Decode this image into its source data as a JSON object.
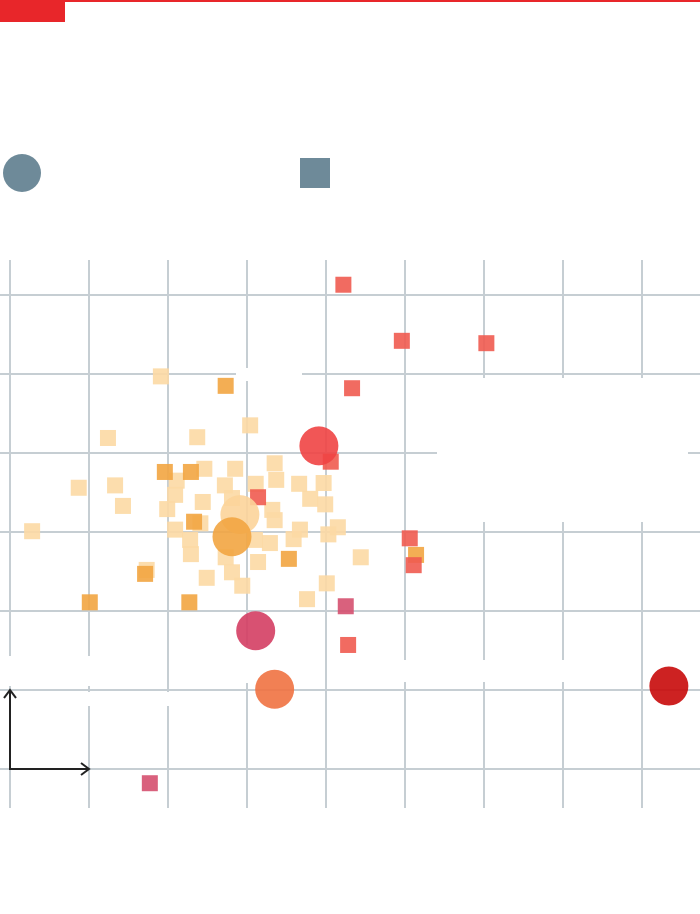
{
  "chart_data": {
    "type": "scatter",
    "xlim": [
      -0.1,
      8.7
    ],
    "ylim": [
      -0.5,
      6.5
    ],
    "xticks": [
      0,
      1,
      2,
      3,
      4,
      5,
      6,
      7,
      8
    ],
    "yticks": [
      0,
      1,
      2,
      3,
      4,
      5,
      6
    ],
    "grid": true,
    "series": [
      {
        "marker": "square",
        "color": "#fcd9a4",
        "x": [
          1.91,
          1.24,
          2.37,
          3.04,
          3.35,
          2.46,
          2.85,
          2.11,
          0.87,
          1.33,
          2.72,
          3.11,
          3.37,
          3.66,
          3.97,
          2.09,
          1.43,
          2.44,
          2.81,
          3.8,
          3.99,
          1.99,
          3.32,
          3.35,
          2.09,
          2.41,
          3.67,
          4.03,
          4.15,
          2.28,
          3.29,
          3.59,
          2.29,
          2.73,
          3.14,
          4.44,
          1.73,
          2.81,
          2.49,
          2.94,
          4.01,
          0.28,
          3.76,
          3.1
        ],
        "values": [
          4.97,
          4.19,
          4.2,
          4.35,
          3.87,
          3.8,
          3.8,
          3.65,
          3.56,
          3.59,
          3.59,
          3.61,
          3.66,
          3.61,
          3.62,
          3.47,
          3.33,
          3.38,
          3.43,
          3.42,
          3.35,
          3.29,
          3.28,
          3.15,
          3.03,
          3.11,
          3.03,
          2.97,
          3.06,
          2.9,
          2.86,
          2.91,
          2.72,
          2.68,
          2.62,
          2.68,
          2.52,
          2.49,
          2.42,
          2.32,
          2.35,
          3.01,
          2.15,
          2.9
        ]
      },
      {
        "marker": "square",
        "color": "#f2a541",
        "x": [
          2.73,
          1.96,
          2.29,
          2.33,
          3.53,
          1.71,
          1.01,
          2.27,
          5.14
        ],
        "values": [
          4.85,
          3.76,
          3.76,
          3.13,
          2.66,
          2.47,
          2.11,
          2.11,
          2.71
        ]
      },
      {
        "marker": "square",
        "color": "#ef5b50",
        "x": [
          4.22,
          4.96,
          6.03,
          4.33,
          4.06,
          3.14,
          5.06,
          5.11,
          4.28
        ],
        "values": [
          6.13,
          5.42,
          5.39,
          4.82,
          3.89,
          3.44,
          2.92,
          2.58,
          1.57
        ]
      },
      {
        "marker": "square",
        "color": "#d5506f",
        "x": [
          4.25,
          1.77
        ],
        "values": [
          2.06,
          -0.18
        ]
      },
      {
        "marker": "circle",
        "colors": [
          "#fcd49a",
          "#f2a541",
          "#ef4444",
          "#d43e63",
          "#f07241",
          "#c80a0a"
        ],
        "x": [
          2.91,
          2.81,
          3.91,
          3.11,
          3.35,
          8.34
        ],
        "values": [
          3.22,
          2.94,
          4.09,
          1.75,
          1.01,
          1.05
        ]
      }
    ]
  }
}
